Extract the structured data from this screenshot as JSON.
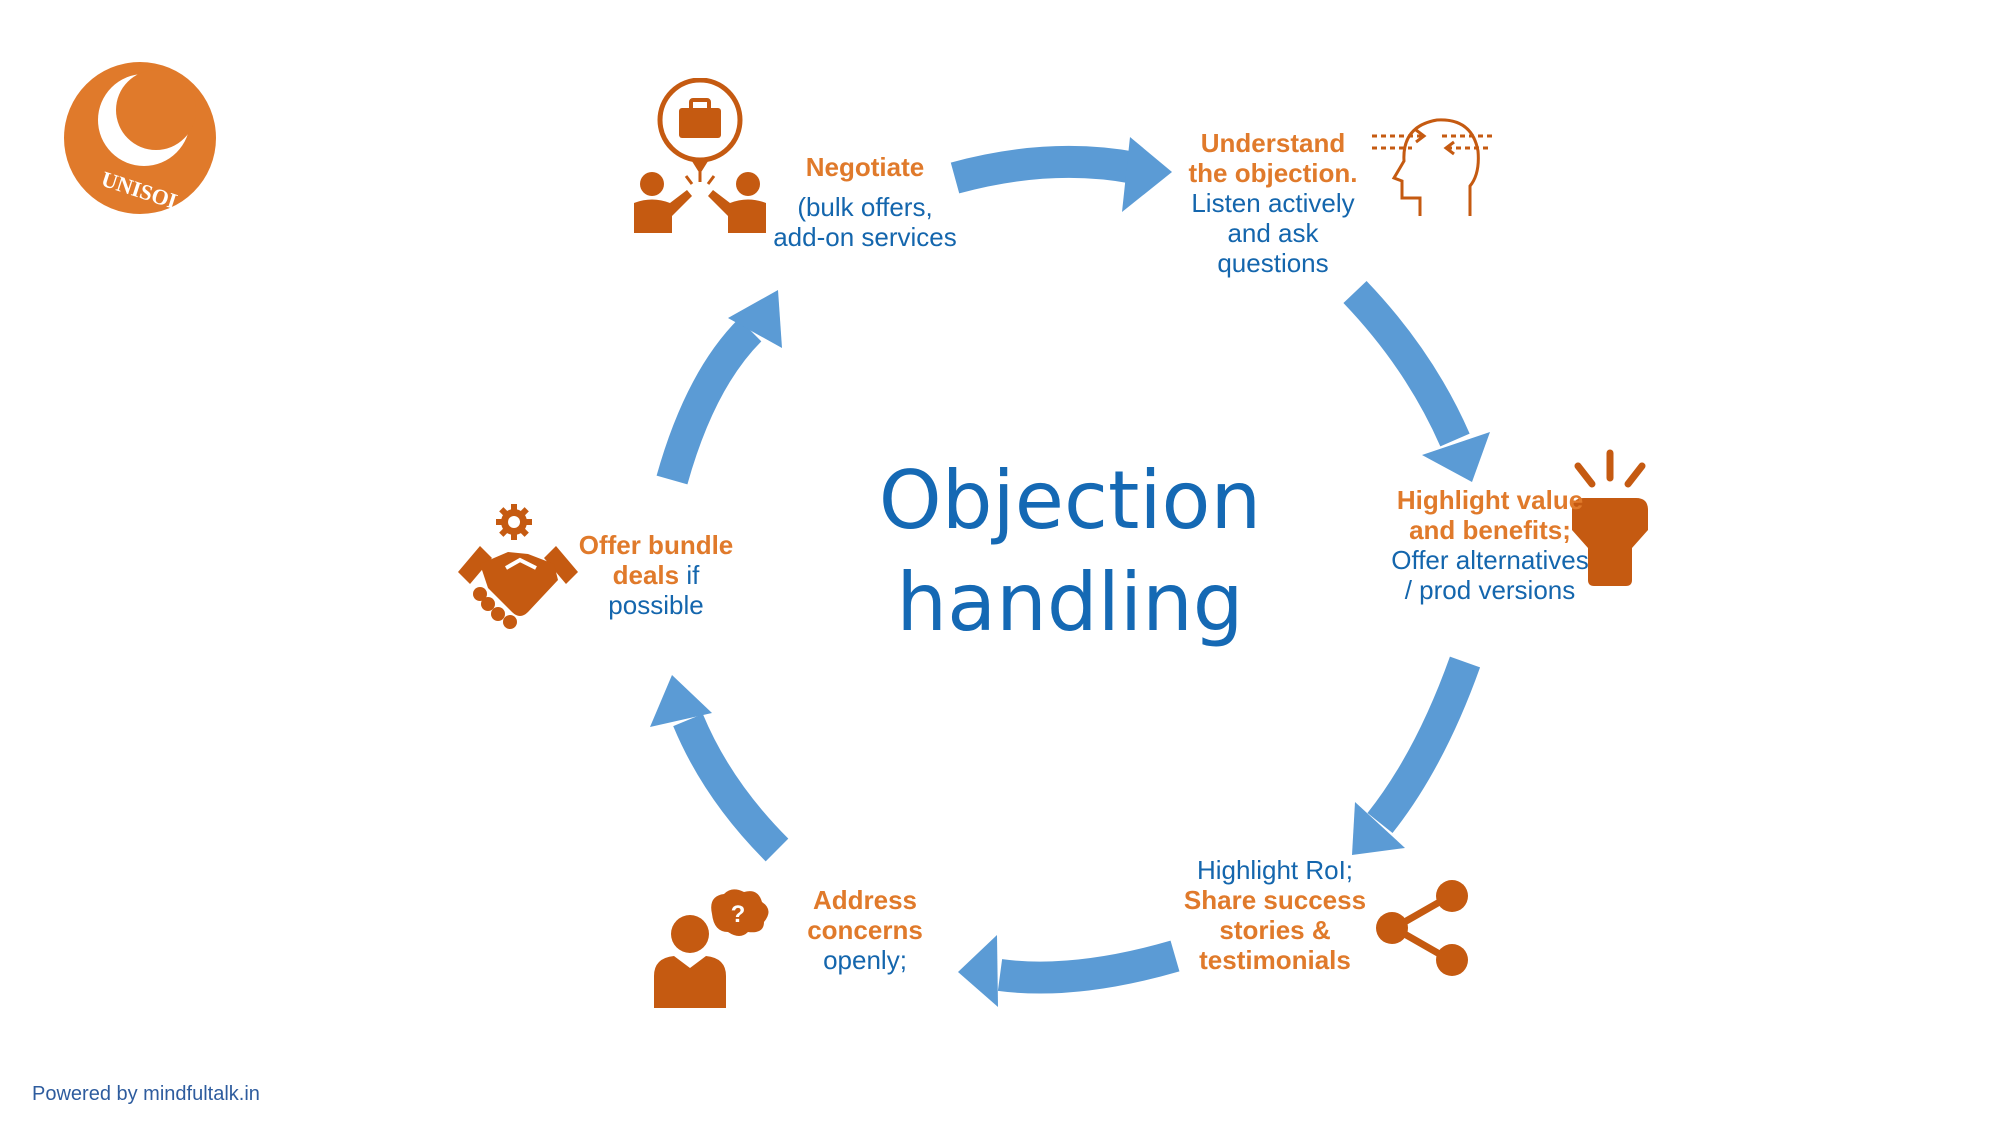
{
  "logo": {
    "text": "UNISOL"
  },
  "title": {
    "line1": "Objection",
    "line2": "handling"
  },
  "steps": [
    {
      "id": "negotiate",
      "icon": "negotiation-icon",
      "orange": "Negotiate",
      "blue": "(bulk offers, add-on services"
    },
    {
      "id": "understand",
      "icon": "head-thinking-icon",
      "orange": "Understand the objection.",
      "blue": "Listen actively and ask questions"
    },
    {
      "id": "highlight",
      "icon": "spotlight-icon",
      "orange": "Highlight value and benefits;",
      "blue": "Offer alternatives / prod versions"
    },
    {
      "id": "roi",
      "icon": "share-icon",
      "blue": "Highlight RoI;",
      "orange": "Share success stories & testimonials"
    },
    {
      "id": "address",
      "icon": "person-question-icon",
      "orange": "Address concerns",
      "blue": "openly;"
    },
    {
      "id": "bundle",
      "icon": "handshake-gear-icon",
      "orange": "Offer bundle deals",
      "blue": "if possible"
    }
  ],
  "footer": "Powered by mindfultalk.in",
  "colors": {
    "arrow": "#5b9bd5",
    "accent": "#e07a2b",
    "icon": "#c55a11",
    "text": "#1466ad"
  }
}
